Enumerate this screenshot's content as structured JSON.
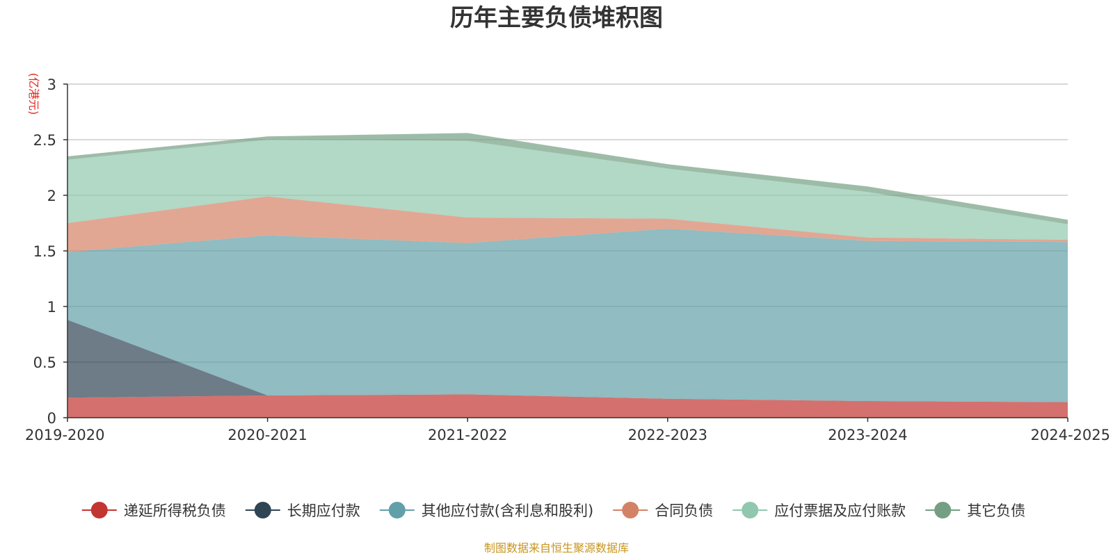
{
  "chart_data": {
    "type": "area",
    "stacked": true,
    "title": "历年主要负债堆积图",
    "unit_label": "(亿港元)",
    "categories": [
      "2019-2020",
      "2020-2021",
      "2021-2022",
      "2022-2023",
      "2023-2024",
      "2024-2025"
    ],
    "ylim": [
      0,
      3
    ],
    "yticks": [
      "0",
      "0.5",
      "1",
      "1.5",
      "2",
      "2.5",
      "3"
    ],
    "grid": true,
    "legend_position": "bottom",
    "series": [
      {
        "name": "递延所得税负债",
        "color": "#c23531",
        "values": [
          0.18,
          0.2,
          0.21,
          0.17,
          0.15,
          0.14
        ]
      },
      {
        "name": "长期应付款",
        "color": "#2f4554",
        "values": [
          0.7,
          0.0,
          0.0,
          0.0,
          0.0,
          0.0
        ]
      },
      {
        "name": "其他应付款(含利息和股利)",
        "color": "#61a0a8",
        "values": [
          0.61,
          1.44,
          1.36,
          1.53,
          1.44,
          1.44
        ]
      },
      {
        "name": "合同负债",
        "color": "#d48265",
        "values": [
          0.26,
          0.35,
          0.23,
          0.09,
          0.03,
          0.02
        ]
      },
      {
        "name": "应付票据及应付账款",
        "color": "#91c7ae",
        "values": [
          0.57,
          0.51,
          0.69,
          0.45,
          0.41,
          0.14
        ]
      },
      {
        "name": "其它负债",
        "color": "#749f83",
        "values": [
          0.03,
          0.03,
          0.07,
          0.04,
          0.05,
          0.04
        ]
      }
    ]
  },
  "source_note": "制图数据来自恒生聚源数据库"
}
